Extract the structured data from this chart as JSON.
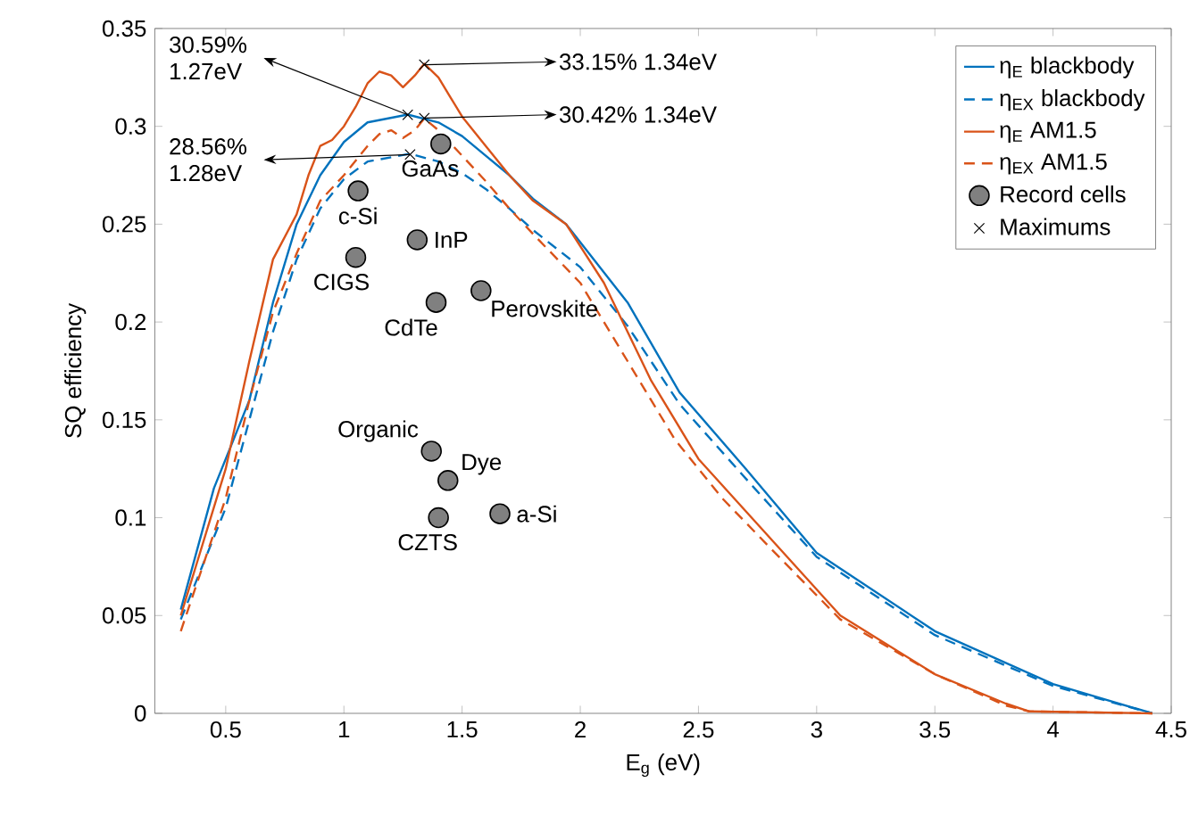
{
  "chart_data": {
    "type": "line",
    "xlabel": "E$_{g}$ (eV)",
    "ylabel": "SQ efficiency",
    "xlim": [
      0.2,
      4.5
    ],
    "xticks": [
      0.5,
      1,
      1.5,
      2,
      2.5,
      3,
      3.5,
      4,
      4.5
    ],
    "ylim": [
      0,
      0.35
    ],
    "yticks": [
      0,
      0.05,
      0.1,
      0.15,
      0.2,
      0.25,
      0.3,
      0.35
    ],
    "legend": "top right",
    "series": [
      {
        "name": "η$_{E}$ blackbody",
        "color": "#0072bd",
        "line_style": "solid",
        "x": [
          0.31,
          0.45,
          0.6,
          0.7,
          0.8,
          0.9,
          1.0,
          1.1,
          1.27,
          1.4,
          1.5,
          1.6,
          1.7,
          1.8,
          1.94,
          2.2,
          2.42,
          2.7,
          3.0,
          3.5,
          4.0,
          4.42
        ],
        "values": [
          0.053,
          0.115,
          0.16,
          0.21,
          0.25,
          0.275,
          0.292,
          0.302,
          0.306,
          0.302,
          0.295,
          0.285,
          0.275,
          0.263,
          0.25,
          0.21,
          0.164,
          0.125,
          0.082,
          0.042,
          0.015,
          0
        ]
      },
      {
        "name": "η$_{EX}$ blackbody",
        "color": "#0072bd",
        "line_style": "dashed",
        "x": [
          0.31,
          0.5,
          0.6,
          0.7,
          0.8,
          0.9,
          1.0,
          1.1,
          1.28,
          1.4,
          1.5,
          1.6,
          1.7,
          1.8,
          2.0,
          2.2,
          2.42,
          2.7,
          3.0,
          3.5,
          4.0,
          4.42
        ],
        "values": [
          0.048,
          0.105,
          0.15,
          0.195,
          0.232,
          0.258,
          0.273,
          0.282,
          0.286,
          0.282,
          0.276,
          0.268,
          0.258,
          0.247,
          0.228,
          0.198,
          0.158,
          0.12,
          0.08,
          0.04,
          0.014,
          0
        ]
      },
      {
        "name": "η$_{E}$ AM1.5",
        "color": "#d95319",
        "line_style": "solid",
        "x": [
          0.31,
          0.5,
          0.6,
          0.7,
          0.8,
          0.85,
          0.9,
          0.95,
          1.0,
          1.05,
          1.1,
          1.15,
          1.2,
          1.25,
          1.3,
          1.34,
          1.4,
          1.45,
          1.5,
          1.6,
          1.7,
          1.8,
          1.94,
          2.1,
          2.3,
          2.5,
          2.8,
          3.1,
          3.5,
          3.8,
          3.9,
          4.42
        ],
        "values": [
          0.05,
          0.125,
          0.18,
          0.232,
          0.255,
          0.275,
          0.29,
          0.293,
          0.3,
          0.31,
          0.322,
          0.328,
          0.326,
          0.32,
          0.326,
          0.332,
          0.325,
          0.315,
          0.305,
          0.29,
          0.275,
          0.262,
          0.25,
          0.22,
          0.17,
          0.13,
          0.09,
          0.05,
          0.02,
          0.005,
          0.001,
          0
        ]
      },
      {
        "name": "η$_{EX}$ AM1.5",
        "color": "#d95319",
        "line_style": "dashed",
        "x": [
          0.31,
          0.5,
          0.6,
          0.7,
          0.8,
          0.9,
          1.0,
          1.1,
          1.15,
          1.2,
          1.25,
          1.3,
          1.34,
          1.4,
          1.5,
          1.6,
          1.7,
          1.8,
          2.0,
          2.2,
          2.4,
          2.6,
          2.8,
          3.1,
          3.5,
          3.8,
          3.9,
          4.42
        ],
        "values": [
          0.042,
          0.11,
          0.16,
          0.205,
          0.235,
          0.262,
          0.275,
          0.29,
          0.296,
          0.298,
          0.294,
          0.298,
          0.304,
          0.298,
          0.285,
          0.272,
          0.258,
          0.245,
          0.22,
          0.18,
          0.14,
          0.11,
          0.085,
          0.048,
          0.02,
          0.004,
          0.001,
          0
        ]
      },
      {
        "name": "Record cells",
        "type": "scatter",
        "marker": "circle",
        "color": "#808080",
        "x": [
          1.41,
          1.06,
          1.05,
          1.31,
          1.39,
          1.58,
          1.37,
          1.44,
          1.4,
          1.66
        ],
        "values": [
          0.291,
          0.267,
          0.233,
          0.242,
          0.21,
          0.216,
          0.134,
          0.119,
          0.1,
          0.102
        ]
      },
      {
        "name": "Maximums",
        "type": "scatter",
        "marker": "cross",
        "color": "#000000",
        "x": [
          1.34,
          1.34,
          1.27,
          1.28
        ],
        "values": [
          0.3315,
          0.3042,
          0.3059,
          0.2856
        ]
      }
    ],
    "annotations": [
      {
        "text": "33.15% 1.34eV",
        "x": 1.34,
        "y": 0.3315
      },
      {
        "text": "30.42% 1.34eV",
        "x": 1.34,
        "y": 0.3042
      },
      {
        "text": "30.59% 1.27eV",
        "x": 1.27,
        "y": 0.3059
      },
      {
        "text": "28.56% 1.28eV",
        "x": 1.28,
        "y": 0.2856
      },
      {
        "text": "GaAs",
        "x": 1.41,
        "y": 0.291
      },
      {
        "text": "c-Si",
        "x": 1.06,
        "y": 0.267
      },
      {
        "text": "CIGS",
        "x": 1.05,
        "y": 0.233
      },
      {
        "text": "InP",
        "x": 1.31,
        "y": 0.242
      },
      {
        "text": "CdTe",
        "x": 1.39,
        "y": 0.21
      },
      {
        "text": "Perovskite",
        "x": 1.58,
        "y": 0.216
      },
      {
        "text": "Organic",
        "x": 1.37,
        "y": 0.134
      },
      {
        "text": "Dye",
        "x": 1.44,
        "y": 0.119
      },
      {
        "text": "CZTS",
        "x": 1.4,
        "y": 0.1
      },
      {
        "text": "a-Si",
        "x": 1.66,
        "y": 0.102
      }
    ]
  }
}
